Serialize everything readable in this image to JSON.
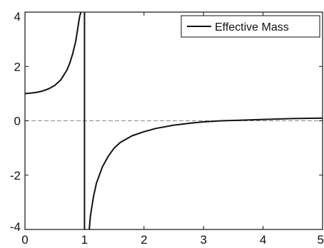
{
  "chart_data": {
    "type": "line",
    "title": "",
    "xlabel": "",
    "ylabel": "",
    "xlim": [
      0,
      5
    ],
    "ylim": [
      -4,
      4
    ],
    "x_ticks": [
      0,
      1,
      2,
      3,
      4,
      5
    ],
    "y_ticks": [
      -4,
      -2,
      0,
      2,
      4
    ],
    "x_tick_labels": [
      "0",
      "1",
      "2",
      "3",
      "4",
      "5"
    ],
    "y_tick_labels": [
      "-4",
      "-2",
      "0",
      "2",
      "4"
    ],
    "grid": false,
    "legend": {
      "position": "top-right",
      "entries": [
        "Effective Mass"
      ]
    },
    "reference_lines": [
      {
        "orientation": "horizontal",
        "value": 0,
        "style": "dashed",
        "color": "#888888"
      }
    ],
    "series": [
      {
        "name": "Effective Mass",
        "color": "#111111",
        "asymptote_x": 1.0,
        "x": [
          0.0,
          0.1,
          0.2,
          0.3,
          0.4,
          0.5,
          0.6,
          0.7,
          0.75,
          0.8,
          0.85,
          0.88,
          0.9,
          0.92,
          0.94,
          1.08,
          1.1,
          1.15,
          1.2,
          1.3,
          1.4,
          1.5,
          1.6,
          1.8,
          2.0,
          2.2,
          2.5,
          2.8,
          3.0,
          3.3,
          3.6,
          4.0,
          4.5,
          5.0
        ],
        "y": [
          1.0,
          1.02,
          1.05,
          1.1,
          1.18,
          1.3,
          1.5,
          1.85,
          2.1,
          2.45,
          2.9,
          3.3,
          3.6,
          3.85,
          4.0,
          -4.0,
          -3.5,
          -2.8,
          -2.3,
          -1.7,
          -1.3,
          -1.0,
          -0.8,
          -0.55,
          -0.4,
          -0.28,
          -0.16,
          -0.08,
          -0.04,
          0.0,
          0.02,
          0.05,
          0.08,
          0.1
        ]
      }
    ]
  }
}
